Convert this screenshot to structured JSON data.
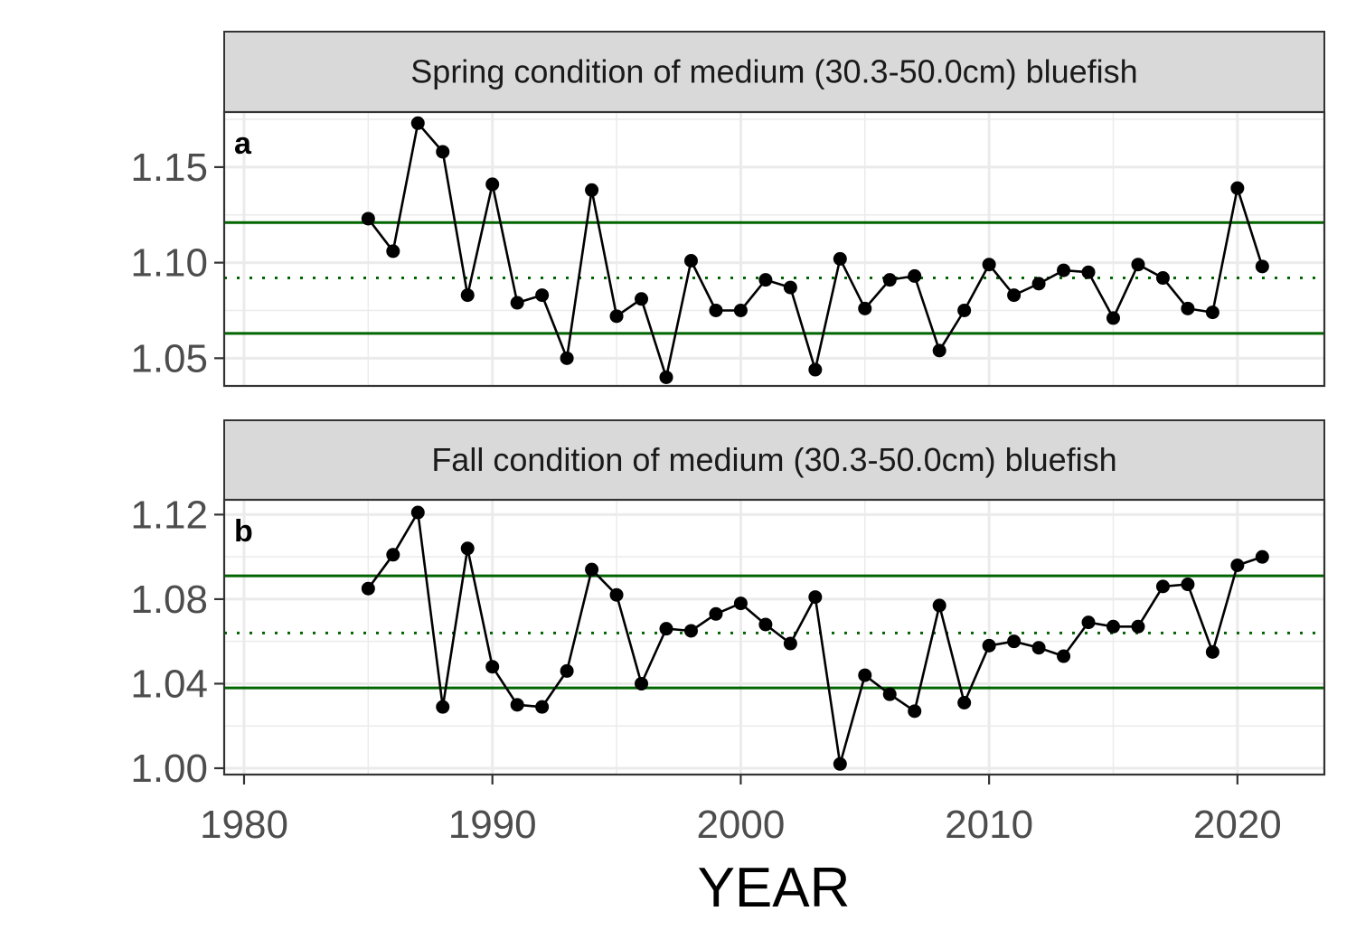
{
  "chart_data": {
    "type": "line",
    "xlabel": "YEAR",
    "x_ticks": [
      1980,
      1990,
      2000,
      2010,
      2020
    ],
    "xlim": [
      1979.2,
      2023.5
    ],
    "colors": {
      "series": "#000000",
      "reference_lines": "#006400",
      "strip_fill": "#d9d9d9",
      "grid": "#ebebeb",
      "border": "#333333"
    },
    "grid": true,
    "panels": [
      {
        "label": "a",
        "title": "Spring condition of medium (30.3-50.0cm) bluefish",
        "ylim": [
          1.0355,
          1.1788
        ],
        "y_ticks": [
          1.05,
          1.1,
          1.15
        ],
        "y_tick_labels": [
          "1.05",
          "1.10",
          "1.15"
        ],
        "reference_lines": {
          "upper": 1.121,
          "mean": 1.092,
          "lower": 1.063
        },
        "x": [
          1985,
          1986,
          1987,
          1988,
          1989,
          1990,
          1991,
          1992,
          1993,
          1994,
          1995,
          1996,
          1997,
          1998,
          1999,
          2000,
          2001,
          2002,
          2003,
          2004,
          2005,
          2006,
          2007,
          2008,
          2009,
          2010,
          2011,
          2012,
          2013,
          2014,
          2015,
          2016,
          2017,
          2018,
          2019,
          2020,
          2021
        ],
        "y": [
          1.123,
          1.106,
          1.173,
          1.158,
          1.083,
          1.141,
          1.079,
          1.083,
          1.05,
          1.138,
          1.072,
          1.081,
          1.04,
          1.101,
          1.075,
          1.075,
          1.091,
          1.087,
          1.044,
          1.102,
          1.076,
          1.091,
          1.093,
          1.054,
          1.075,
          1.099,
          1.083,
          1.089,
          1.096,
          1.095,
          1.071,
          1.099,
          1.092,
          1.076,
          1.074,
          1.139,
          1.098
        ]
      },
      {
        "label": "b",
        "title": "Fall condition of medium (30.3-50.0cm) bluefish",
        "ylim": [
          0.997,
          1.127
        ],
        "y_ticks": [
          1.0,
          1.04,
          1.08,
          1.12
        ],
        "y_tick_labels": [
          "1.00",
          "1.04",
          "1.08",
          "1.12"
        ],
        "reference_lines": {
          "upper": 1.091,
          "mean": 1.064,
          "lower": 1.038
        },
        "x": [
          1985,
          1986,
          1987,
          1988,
          1989,
          1990,
          1991,
          1992,
          1993,
          1994,
          1995,
          1996,
          1997,
          1998,
          1999,
          2000,
          2001,
          2002,
          2003,
          2004,
          2005,
          2006,
          2007,
          2008,
          2009,
          2010,
          2011,
          2012,
          2013,
          2014,
          2015,
          2016,
          2017,
          2018,
          2019,
          2020,
          2021
        ],
        "y": [
          1.085,
          1.101,
          1.121,
          1.029,
          1.104,
          1.048,
          1.03,
          1.029,
          1.046,
          1.094,
          1.082,
          1.04,
          1.066,
          1.065,
          1.073,
          1.078,
          1.068,
          1.059,
          1.081,
          1.002,
          1.044,
          1.035,
          1.027,
          1.077,
          1.031,
          1.058,
          1.06,
          1.057,
          1.053,
          1.069,
          1.067,
          1.067,
          1.086,
          1.087,
          1.055,
          1.096,
          1.1
        ]
      }
    ]
  }
}
